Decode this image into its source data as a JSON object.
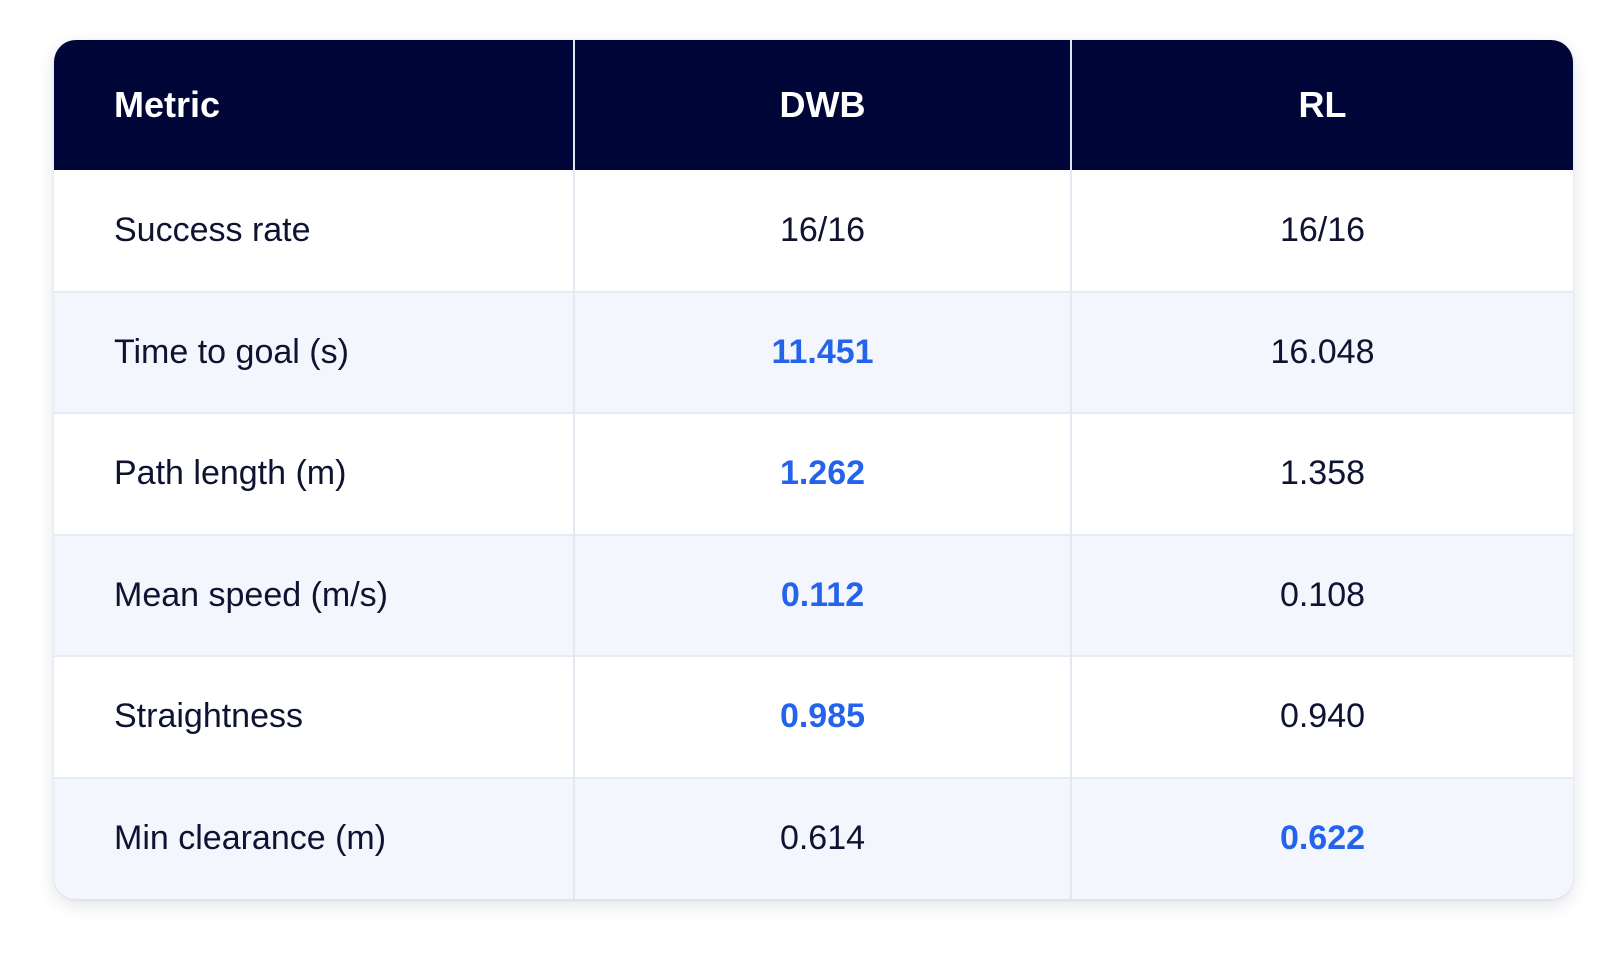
{
  "table": {
    "headers": [
      "Metric",
      "DWB",
      "RL"
    ],
    "rows": [
      {
        "metric": "Success rate",
        "dwb": "16/16",
        "rl": "16/16",
        "best": ""
      },
      {
        "metric": "Time to goal (s)",
        "dwb": "11.451",
        "rl": "16.048",
        "best": "dwb"
      },
      {
        "metric": "Path length (m)",
        "dwb": "1.262",
        "rl": "1.358",
        "best": "dwb"
      },
      {
        "metric": "Mean speed (m/s)",
        "dwb": "0.112",
        "rl": "0.108",
        "best": "dwb"
      },
      {
        "metric": "Straightness",
        "dwb": "0.985",
        "rl": "0.940",
        "best": "dwb"
      },
      {
        "metric": "Min clearance (m)",
        "dwb": "0.614",
        "rl": "0.622",
        "best": "rl"
      }
    ]
  },
  "colors": {
    "header_bg": "#000638",
    "header_text": "#ffffff",
    "highlight": "#2563eb",
    "body_text": "#0d1330",
    "stripe": "#f3f6fd"
  }
}
